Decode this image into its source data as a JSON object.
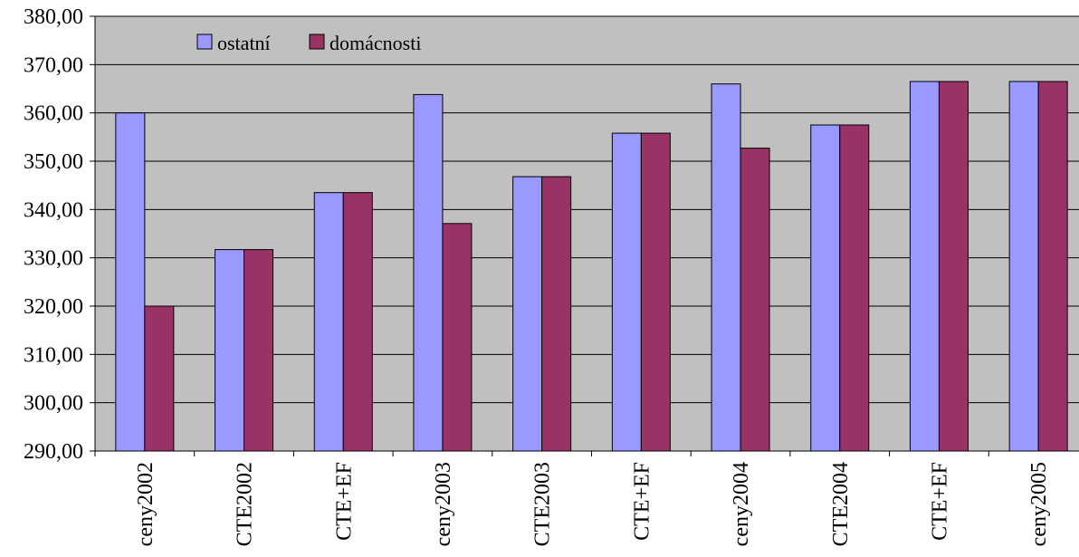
{
  "chart_data": {
    "type": "bar",
    "title": "",
    "xlabel": "",
    "ylabel": "",
    "categories": [
      "ceny2002",
      "CTE2002",
      "CTE+EF",
      "ceny2003",
      "CTE2003",
      "CTE+EF",
      "ceny2004",
      "CTE2004",
      "CTE+EF",
      "ceny2005"
    ],
    "series": [
      {
        "name": "ostatní",
        "color": "#9999ff",
        "values": [
          360.0,
          331.7,
          343.5,
          363.8,
          346.8,
          355.8,
          366.0,
          357.5,
          366.5,
          366.5
        ]
      },
      {
        "name": "domácnosti",
        "color": "#993366",
        "values": [
          320.0,
          331.7,
          343.5,
          337.1,
          346.8,
          355.8,
          352.7,
          357.5,
          366.5,
          366.5
        ]
      }
    ],
    "ylim": [
      290,
      380
    ],
    "yticks": [
      "290,00",
      "300,00",
      "310,00",
      "320,00",
      "330,00",
      "340,00",
      "350,00",
      "360,00",
      "370,00",
      "380,00"
    ],
    "grid": true,
    "legend_position": "top-left",
    "plot_background": "#c0c0c0"
  }
}
